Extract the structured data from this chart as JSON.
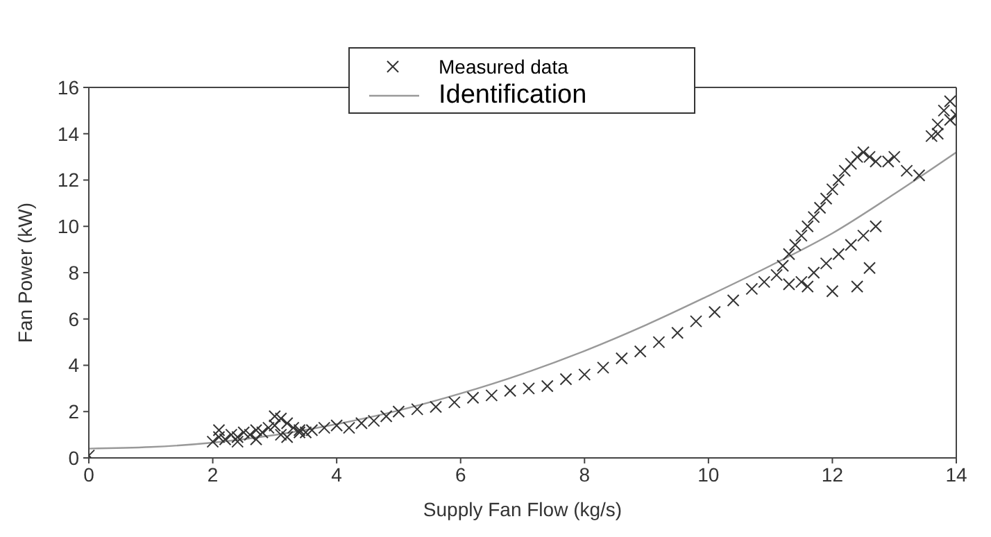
{
  "chart_data": {
    "type": "scatter",
    "xlabel": "Supply Fan Flow (kg/s)",
    "ylabel": "Fan Power (kW)",
    "xlim": [
      0,
      14
    ],
    "ylim": [
      0,
      16
    ],
    "xticks": [
      0,
      2,
      4,
      6,
      8,
      10,
      12,
      14
    ],
    "yticks": [
      0,
      2,
      4,
      6,
      8,
      10,
      12,
      14,
      16
    ],
    "legend": "top",
    "series": [
      {
        "name": "Measured data",
        "marker": "cross",
        "color": "#333333",
        "x": [
          0,
          2.0,
          2.1,
          2.2,
          2.3,
          2.4,
          2.5,
          2.6,
          2.7,
          2.8,
          2.9,
          3.0,
          3.1,
          3.2,
          3.3,
          3.4,
          3.5,
          2.1,
          2.4,
          2.7,
          3.0,
          3.1,
          3.2,
          3.4,
          3.6,
          3.8,
          4.0,
          4.2,
          4.4,
          4.6,
          4.8,
          5.0,
          5.3,
          5.6,
          5.9,
          6.2,
          6.5,
          6.8,
          7.1,
          7.4,
          7.7,
          8.0,
          8.3,
          8.6,
          8.9,
          9.2,
          9.5,
          9.8,
          10.1,
          10.4,
          10.7,
          10.9,
          11.1,
          11.2,
          11.3,
          11.4,
          11.5,
          11.6,
          11.7,
          11.8,
          11.9,
          12.0,
          12.1,
          12.2,
          12.3,
          12.4,
          12.5,
          12.6,
          12.7,
          11.5,
          11.7,
          11.9,
          12.1,
          12.3,
          12.5,
          12.7,
          11.3,
          11.6,
          12.0,
          12.4,
          12.6,
          12.9,
          13.0,
          13.2,
          13.4,
          13.6,
          13.7,
          13.8,
          13.9,
          14.0,
          13.9,
          13.7
        ],
        "values": [
          0.1,
          0.7,
          0.9,
          0.8,
          1.0,
          0.9,
          1.1,
          1.0,
          1.2,
          1.1,
          1.3,
          1.4,
          1.7,
          1.5,
          1.3,
          1.2,
          1.1,
          1.2,
          0.7,
          0.8,
          1.8,
          1.0,
          0.9,
          1.1,
          1.2,
          1.3,
          1.4,
          1.3,
          1.5,
          1.6,
          1.8,
          2.0,
          2.1,
          2.2,
          2.4,
          2.6,
          2.7,
          2.9,
          3.0,
          3.1,
          3.4,
          3.6,
          3.9,
          4.3,
          4.6,
          5.0,
          5.4,
          5.9,
          6.3,
          6.8,
          7.3,
          7.6,
          7.9,
          8.3,
          8.8,
          9.2,
          9.6,
          10.0,
          10.4,
          10.8,
          11.2,
          11.6,
          12.0,
          12.4,
          12.7,
          13.0,
          13.2,
          13.0,
          12.8,
          7.6,
          8.0,
          8.4,
          8.8,
          9.2,
          9.6,
          10.0,
          7.5,
          7.4,
          7.2,
          7.4,
          8.2,
          12.8,
          13.0,
          12.4,
          12.2,
          13.9,
          14.4,
          15.0,
          14.6,
          14.8,
          15.4,
          14.0
        ]
      },
      {
        "name": "Identification",
        "type": "line",
        "color": "#999999",
        "marker": "none",
        "x": [
          0,
          1,
          2,
          3,
          4,
          5,
          6,
          7,
          8,
          9,
          10,
          11,
          12,
          13,
          14
        ],
        "values": [
          0.4,
          0.47,
          0.66,
          0.99,
          1.46,
          2.05,
          2.78,
          3.63,
          4.62,
          5.75,
          7.0,
          8.3,
          9.7,
          11.4,
          13.2
        ]
      }
    ]
  }
}
